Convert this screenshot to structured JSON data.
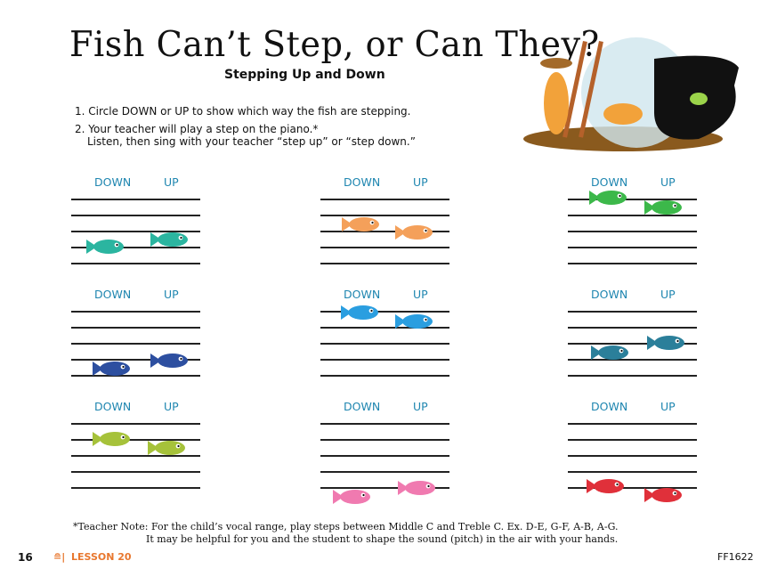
{
  "header": {
    "title": "Fish Can’t Step, or Can They?",
    "subtitle": "Stepping Up and Down"
  },
  "instructions": [
    "1. Circle DOWN or UP to show which way the fish are stepping.",
    "2. Your teacher will play a step on the piano.*",
    "Listen, then sing with your teacher “step up” or “step down.”"
  ],
  "exercise": {
    "down_label": "DOWN",
    "up_label": "UP",
    "staffs": [
      {
        "fish_color": "#2bb5a0"
      },
      {
        "fish_color": "#f4a05a"
      },
      {
        "fish_color": "#3cb84a"
      },
      {
        "fish_color": "#2d4fa0"
      },
      {
        "fish_color": "#2a9ee0"
      },
      {
        "fish_color": "#2b7f9a"
      },
      {
        "fish_color": "#a6c23a"
      },
      {
        "fish_color": "#f07ab0"
      },
      {
        "fish_color": "#e0303a"
      }
    ]
  },
  "teacher_note": {
    "line1": "*Teacher Note: For the child’s vocal range, play steps between Middle C and Treble C. Ex. D-E, G-F, A-B, A-G.",
    "line2": "It may be helpful for you and the student to shape the sound (pitch) in the air with your hands."
  },
  "footer": {
    "page_number": "16",
    "lesson": "LESSON 20",
    "code": "FF1622",
    "accent": "#e8772e"
  }
}
